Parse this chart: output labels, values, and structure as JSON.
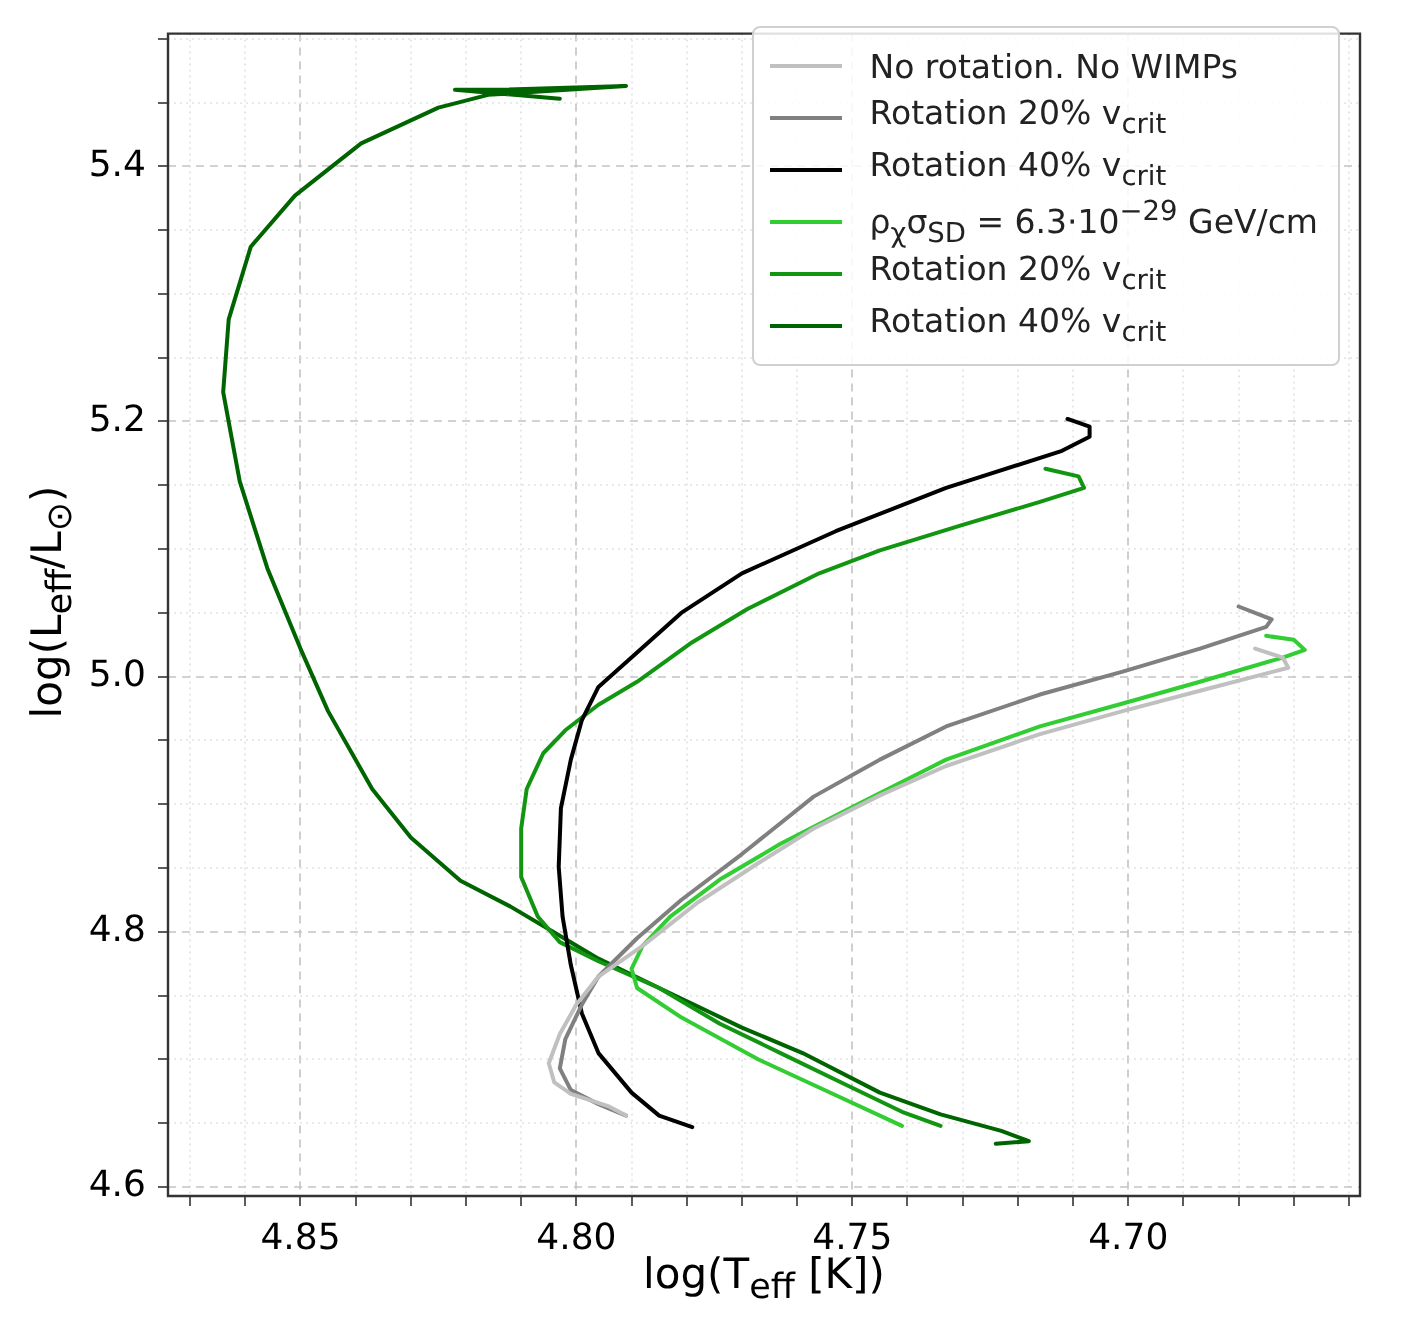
{
  "chart_data": {
    "type": "line",
    "xlabel": "log(T$_{eff}$ [K])",
    "ylabel": "log(L$_{eff}$/L$_{⊙}$)",
    "xlim": [
      4.874,
      4.658
    ],
    "ylim": [
      4.593,
      5.504
    ],
    "xticks": [
      {
        "value": 4.87,
        "label": null
      },
      {
        "value": 4.86,
        "label": null
      },
      {
        "value": 4.85,
        "label": "4.85"
      },
      {
        "value": 4.84,
        "label": null
      },
      {
        "value": 4.83,
        "label": null
      },
      {
        "value": 4.82,
        "label": null
      },
      {
        "value": 4.81,
        "label": null
      },
      {
        "value": 4.8,
        "label": "4.80"
      },
      {
        "value": 4.79,
        "label": null
      },
      {
        "value": 4.78,
        "label": null
      },
      {
        "value": 4.77,
        "label": null
      },
      {
        "value": 4.76,
        "label": null
      },
      {
        "value": 4.75,
        "label": "4.75"
      },
      {
        "value": 4.74,
        "label": null
      },
      {
        "value": 4.73,
        "label": null
      },
      {
        "value": 4.72,
        "label": null
      },
      {
        "value": 4.71,
        "label": null
      },
      {
        "value": 4.7,
        "label": "4.70"
      },
      {
        "value": 4.69,
        "label": null
      },
      {
        "value": 4.68,
        "label": null
      },
      {
        "value": 4.67,
        "label": null
      },
      {
        "value": 4.66,
        "label": null
      }
    ],
    "yticks": [
      4.6,
      {
        "value": 4.65,
        "label": null
      },
      {
        "value": 4.7,
        "label": null
      },
      {
        "value": 4.75,
        "label": null
      },
      4.8,
      {
        "value": 4.85,
        "label": null
      },
      {
        "value": 4.9,
        "label": null
      },
      {
        "value": 4.95,
        "label": null
      },
      {
        "value": 5,
        "label": "5.0"
      },
      {
        "value": 5.05,
        "label": null
      },
      {
        "value": 5.1,
        "label": null
      },
      {
        "value": 5.15,
        "label": null
      },
      5.2,
      {
        "value": 5.25,
        "label": null
      },
      {
        "value": 5.3,
        "label": null
      },
      {
        "value": 5.35,
        "label": null
      },
      5.4,
      {
        "value": 5.45,
        "label": null
      },
      {
        "value": 5.5,
        "label": null
      }
    ],
    "grid": true,
    "legend": "top right",
    "series": [
      {
        "name": "No rotation. No WIMPs",
        "color": "#c0c0c0",
        "x": [
          4.791,
          4.794,
          4.801,
          4.804,
          4.805,
          4.803,
          4.8,
          4.796,
          4.788,
          4.778,
          4.767,
          4.757,
          4.745,
          4.733,
          4.716,
          4.701,
          4.687,
          4.671,
          4.672,
          4.677
        ],
        "values": [
          4.656,
          4.663,
          4.673,
          4.682,
          4.697,
          4.72,
          4.743,
          4.765,
          4.789,
          4.823,
          4.854,
          4.881,
          4.907,
          4.93,
          4.955,
          4.973,
          4.989,
          5.007,
          5.015,
          5.022
        ]
      },
      {
        "name": "Rotation 20% v$_{crit}$",
        "color": "#808080",
        "x": [
          4.791,
          4.796,
          4.801,
          4.803,
          4.802,
          4.799,
          4.796,
          4.789,
          4.781,
          4.77,
          4.757,
          4.745,
          4.733,
          4.716,
          4.701,
          4.687,
          4.675,
          4.674,
          4.68
        ],
        "values": [
          4.656,
          4.665,
          4.676,
          4.693,
          4.716,
          4.743,
          4.765,
          4.795,
          4.825,
          4.861,
          4.906,
          4.935,
          4.961,
          4.986,
          5.004,
          5.022,
          5.039,
          5.045,
          5.055
        ]
      },
      {
        "name": "Rotation 40% v$_{crit}$",
        "color": "#000000",
        "x": [
          4.779,
          4.785,
          4.79,
          4.796,
          4.799,
          4.801,
          4.8025,
          4.8032,
          4.8028,
          4.801,
          4.799,
          4.796,
          4.789,
          4.781,
          4.77,
          4.753,
          4.733,
          4.712,
          4.707,
          4.707,
          4.711
        ],
        "values": [
          4.647,
          4.656,
          4.674,
          4.705,
          4.736,
          4.774,
          4.812,
          4.851,
          4.897,
          4.935,
          4.966,
          4.992,
          5.019,
          5.05,
          5.081,
          5.114,
          5.148,
          5.177,
          5.188,
          5.196,
          5.202
        ]
      },
      {
        "name": "ρ$_{χ}$σ$_{SD}$ = 6.3·10$^{−29}$ GeV/cm",
        "color": "#32cd32",
        "x": [
          4.741,
          4.752,
          4.767,
          4.781,
          4.789,
          4.79,
          4.788,
          4.783,
          4.774,
          4.763,
          4.749,
          4.733,
          4.716,
          4.701,
          4.687,
          4.672,
          4.668,
          4.67,
          4.675
        ],
        "values": [
          4.648,
          4.67,
          4.7,
          4.733,
          4.756,
          4.771,
          4.789,
          4.812,
          4.841,
          4.869,
          4.9,
          4.935,
          4.961,
          4.979,
          4.996,
          5.015,
          5.021,
          5.029,
          5.032
        ]
      },
      {
        "name": "Rotation 20% v$_{crit}$",
        "color": "#129612",
        "x": [
          4.734,
          4.741,
          4.752,
          4.763,
          4.774,
          4.785,
          4.796,
          4.803,
          4.807,
          4.81,
          4.81,
          4.809,
          4.806,
          4.802,
          4.796,
          4.789,
          4.779,
          4.769,
          4.756,
          4.745,
          4.73,
          4.716,
          4.708,
          4.709,
          4.715
        ],
        "values": [
          4.648,
          4.659,
          4.682,
          4.705,
          4.728,
          4.756,
          4.777,
          4.792,
          4.812,
          4.843,
          4.881,
          4.912,
          4.94,
          4.958,
          4.978,
          4.996,
          5.027,
          5.053,
          5.081,
          5.099,
          5.119,
          5.137,
          5.148,
          5.157,
          5.163
        ]
      },
      {
        "name": "Rotation 40% v$_{crit}$",
        "color": "#006400",
        "x": [
          4.724,
          4.718,
          4.723,
          4.734,
          4.745,
          4.759,
          4.77,
          4.785,
          4.796,
          4.803,
          4.812,
          4.821,
          4.83,
          4.837,
          4.845,
          4.85,
          4.856,
          4.861,
          4.864,
          4.863,
          4.859,
          4.851,
          4.839,
          4.825,
          4.816,
          4.791,
          4.814,
          4.822,
          4.803
        ],
        "values": [
          4.634,
          4.636,
          4.644,
          4.657,
          4.674,
          4.705,
          4.725,
          4.756,
          4.779,
          4.797,
          4.82,
          4.84,
          4.874,
          4.912,
          4.973,
          5.022,
          5.085,
          5.153,
          5.223,
          5.28,
          5.337,
          5.377,
          5.418,
          5.446,
          5.456,
          5.463,
          5.46,
          5.46,
          5.453
        ]
      }
    ]
  }
}
